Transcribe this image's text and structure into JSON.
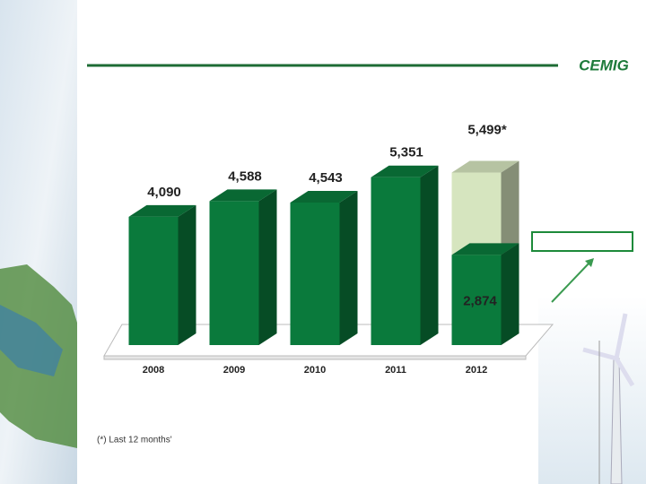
{
  "logo": "CEMIG",
  "chart_data": {
    "type": "bar3d",
    "categories": [
      "2008",
      "2009",
      "2010",
      "2011",
      "2012"
    ],
    "series": [
      {
        "values": [
          4090,
          4588,
          4543,
          5351,
          5499
        ],
        "value_labels": [
          "4,090",
          "4,588",
          "4,543",
          "5,351",
          "5,499*"
        ],
        "colors": [
          "#0a7a3c",
          "#0a7a3c",
          "#0a7a3c",
          "#0a7a3c",
          "#d6e5bf"
        ]
      },
      {
        "values": [
          null,
          null,
          null,
          null,
          2874
        ],
        "value_labels": [
          null,
          null,
          null,
          null,
          "2,874"
        ],
        "color": "#0a7a3c"
      }
    ],
    "ylim": [
      0,
      6000
    ],
    "annotation": "(*) Last 12 months'"
  }
}
